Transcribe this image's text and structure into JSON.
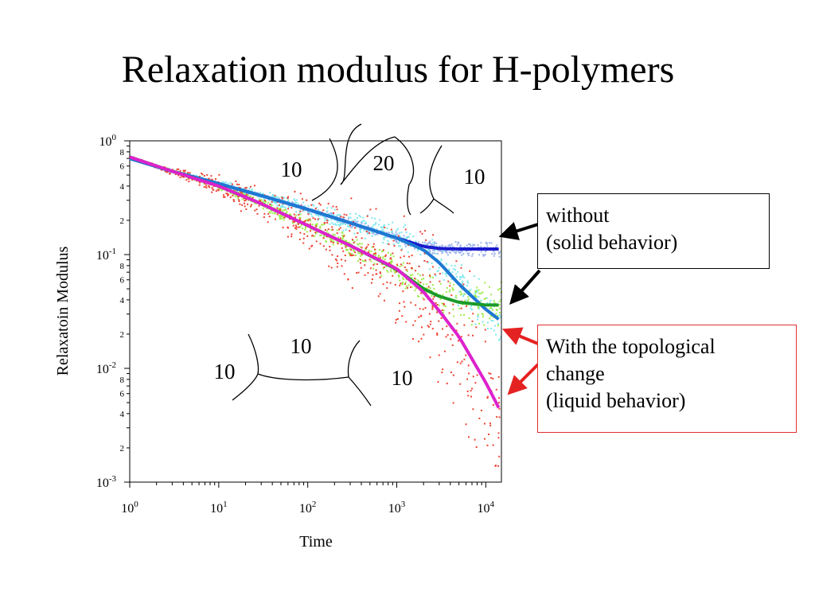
{
  "slide": {
    "title": "Relaxation modulus for H-polymers",
    "annotations": {
      "solid": [
        "without",
        "(solid behavior)"
      ],
      "liquid": [
        "With the topological",
        "change",
        "(liquid behavior)"
      ]
    },
    "topology_labels": {
      "top_left": "10",
      "top_middle": "20",
      "top_right": "10",
      "bottom_middle": "10",
      "bottom_left": "10",
      "bottom_right": "10"
    },
    "arrow_colors": {
      "solid": "#000000",
      "liquid": "#e52222"
    }
  },
  "chart_data": {
    "type": "line",
    "xlabel": "Time",
    "ylabel": "Relaxatoin Modulus",
    "xscale": "log",
    "yscale": "log",
    "xlim": [
      1,
      15000
    ],
    "ylim": [
      0.001,
      1
    ],
    "x_ticks": [
      {
        "base": "10",
        "exp": "0",
        "value": 1
      },
      {
        "base": "10",
        "exp": "1",
        "value": 10
      },
      {
        "base": "10",
        "exp": "2",
        "value": 100
      },
      {
        "base": "10",
        "exp": "3",
        "value": 1000
      },
      {
        "base": "10",
        "exp": "4",
        "value": 10000
      }
    ],
    "y_ticks": [
      {
        "base": "10",
        "exp": "0",
        "value": 1
      },
      {
        "base": "10",
        "exp": "-1",
        "value": 0.1
      },
      {
        "base": "10",
        "exp": "-2",
        "value": 0.01
      },
      {
        "base": "10",
        "exp": "-3",
        "value": 0.001
      }
    ],
    "y_minor_labels": [
      "8",
      "6",
      "4",
      "2"
    ],
    "series": [
      {
        "color": "#1a1acc",
        "x": [
          1,
          3,
          10,
          30,
          100,
          300,
          1000,
          2000,
          3000,
          5000,
          10000,
          14000
        ],
        "y": [
          0.7,
          0.54,
          0.42,
          0.33,
          0.25,
          0.19,
          0.14,
          0.118,
          0.113,
          0.112,
          0.112,
          0.112
        ]
      },
      {
        "color": "#1e78d2",
        "x": [
          1,
          3,
          10,
          30,
          100,
          300,
          1000,
          2000,
          3000,
          5000,
          10000,
          14000
        ],
        "y": [
          0.7,
          0.54,
          0.42,
          0.33,
          0.25,
          0.19,
          0.14,
          0.11,
          0.085,
          0.055,
          0.033,
          0.027
        ]
      },
      {
        "color": "#1a9a2a",
        "x": [
          1,
          3,
          10,
          30,
          100,
          300,
          1000,
          2000,
          3000,
          5000,
          10000,
          14000
        ],
        "y": [
          0.72,
          0.54,
          0.4,
          0.28,
          0.18,
          0.12,
          0.074,
          0.05,
          0.043,
          0.038,
          0.036,
          0.036
        ]
      },
      {
        "color": "#dd22cc",
        "x": [
          1,
          3,
          10,
          30,
          100,
          300,
          1000,
          2000,
          3000,
          5000,
          10000,
          14000
        ],
        "y": [
          0.72,
          0.54,
          0.4,
          0.28,
          0.18,
          0.12,
          0.075,
          0.047,
          0.032,
          0.019,
          0.0075,
          0.0045
        ]
      }
    ],
    "noise_colors": [
      "#9db3ee",
      "#7ee8ee",
      "#9ded4a",
      "#ee4433"
    ],
    "grid": false
  }
}
